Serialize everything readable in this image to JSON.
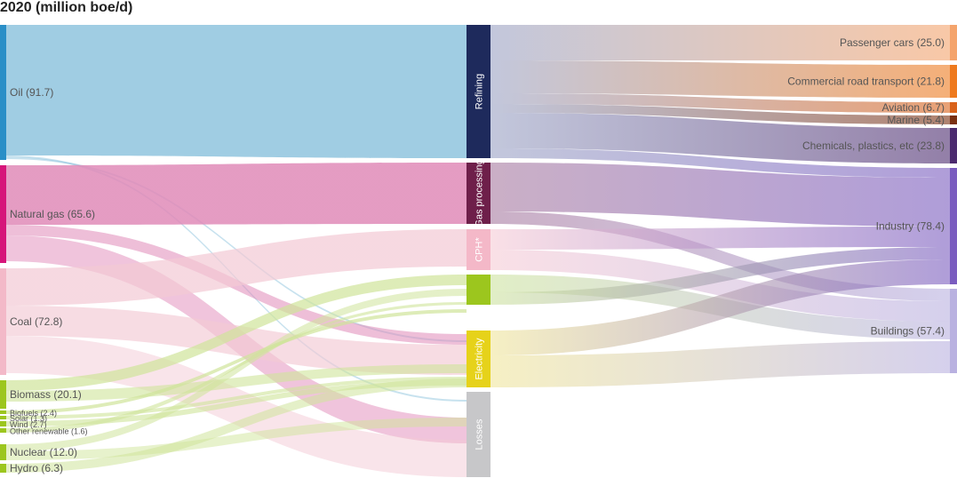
{
  "title": "2020 (million boe/d)",
  "chart_data": {
    "type": "sankey",
    "units": "million boe/d",
    "sources": [
      {
        "id": "oil",
        "label": "Oil (91.7)",
        "value": 91.7,
        "color": "#2a8fc7",
        "flow_color": "#8fc4de"
      },
      {
        "id": "gas",
        "label": "Natural gas (65.6)",
        "value": 65.6,
        "color": "#d6157a",
        "flow_color": "#e08ab8"
      },
      {
        "id": "coal",
        "label": "Coal (72.8)",
        "value": 72.8,
        "color": "#f3b9c8",
        "flow_color": "#f3c9d4"
      },
      {
        "id": "biomass",
        "label": "Biomass (20.1)",
        "value": 20.1,
        "color": "#9cc61e",
        "flow_color": "#cfe49a"
      },
      {
        "id": "biofuels",
        "label": "Biofuels (2.4)",
        "value": 2.4,
        "color": "#9cc61e",
        "flow_color": "#cfe49a"
      },
      {
        "id": "solar",
        "label": "Solar (1.3)",
        "value": 1.3,
        "color": "#9cc61e",
        "flow_color": "#cfe49a"
      },
      {
        "id": "wind",
        "label": "Wind (2.7)",
        "value": 2.7,
        "color": "#9cc61e",
        "flow_color": "#cfe49a"
      },
      {
        "id": "other_renewable",
        "label": "Other renewable (1.6)",
        "value": 1.6,
        "color": "#9cc61e",
        "flow_color": "#cfe49a"
      },
      {
        "id": "nuclear",
        "label": "Nuclear (12.0)",
        "value": 12.0,
        "color": "#9cc61e",
        "flow_color": "#cfe49a"
      },
      {
        "id": "hydro",
        "label": "Hydro (6.3)",
        "value": 6.3,
        "color": "#9cc61e",
        "flow_color": "#cfe49a"
      }
    ],
    "conversion": [
      {
        "id": "refining",
        "label": "Refining",
        "color": "#1e2a5c"
      },
      {
        "id": "gas_processing",
        "label": "Gas processing",
        "color": "#6e1f4a"
      },
      {
        "id": "cph",
        "label": "CPH*",
        "color": "#f4b8c8"
      },
      {
        "id": "green_block",
        "label": "",
        "color": "#9cc61e"
      },
      {
        "id": "electricity",
        "label": "Electricity",
        "color": "#e6d21a"
      },
      {
        "id": "losses",
        "label": "Losses",
        "color": "#c7c7c9"
      }
    ],
    "sectors": [
      {
        "id": "passenger_cars",
        "label": "Passenger cars (25.0)",
        "value": 25.0,
        "color": "#f4a46c"
      },
      {
        "id": "commercial_road",
        "label": "Commercial road transport (21.8)",
        "value": 21.8,
        "color": "#ee7a1e"
      },
      {
        "id": "aviation",
        "label": "Aviation (6.7)",
        "value": 6.7,
        "color": "#d9621a"
      },
      {
        "id": "marine",
        "label": "Marine (5.4)",
        "value": 5.4,
        "color": "#7a3010"
      },
      {
        "id": "chemicals",
        "label": "Chemicals, plastics, etc (23.8)",
        "value": 23.8,
        "color": "#4b2a6e"
      },
      {
        "id": "industry",
        "label": "Industry (78.4)",
        "value": 78.4,
        "color": "#7a5cbf"
      },
      {
        "id": "buildings",
        "label": "Buildings (57.4)",
        "value": 57.4,
        "color": "#b9b1e0"
      }
    ]
  }
}
